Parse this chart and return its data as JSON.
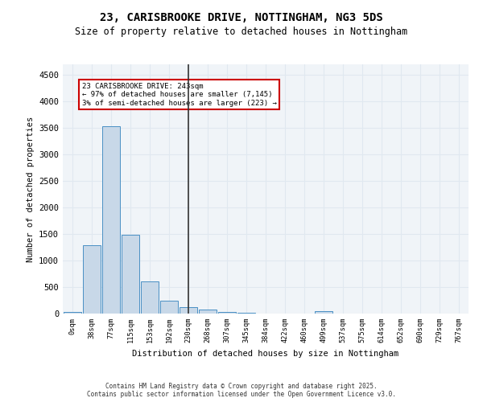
{
  "title_line1": "23, CARISBROOKE DRIVE, NOTTINGHAM, NG3 5DS",
  "title_line2": "Size of property relative to detached houses in Nottingham",
  "xlabel": "Distribution of detached houses by size in Nottingham",
  "ylabel": "Number of detached properties",
  "bin_labels": [
    "0sqm",
    "38sqm",
    "77sqm",
    "115sqm",
    "153sqm",
    "192sqm",
    "230sqm",
    "268sqm",
    "307sqm",
    "345sqm",
    "384sqm",
    "422sqm",
    "460sqm",
    "499sqm",
    "537sqm",
    "575sqm",
    "614sqm",
    "652sqm",
    "690sqm",
    "729sqm",
    "767sqm"
  ],
  "bar_values": [
    30,
    1290,
    3530,
    1490,
    600,
    250,
    115,
    80,
    35,
    20,
    5,
    0,
    0,
    50,
    0,
    0,
    0,
    0,
    0,
    0,
    0
  ],
  "bar_color": "#c8d8e8",
  "bar_edge_color": "#4a90c4",
  "property_line_x": 5.2,
  "annotation_title": "23 CARISBROOKE DRIVE: 243sqm",
  "annotation_line1": "← 97% of detached houses are smaller (7,145)",
  "annotation_line2": "3% of semi-detached houses are larger (223) →",
  "annotation_box_color": "#ffffff",
  "annotation_box_edge_color": "#cc0000",
  "ylim": [
    0,
    4700
  ],
  "yticks": [
    0,
    500,
    1000,
    1500,
    2000,
    2500,
    3000,
    3500,
    4000,
    4500
  ],
  "grid_color": "#e0e8f0",
  "background_color": "#f0f4f8",
  "footer_line1": "Contains HM Land Registry data © Crown copyright and database right 2025.",
  "footer_line2": "Contains public sector information licensed under the Open Government Licence v3.0."
}
